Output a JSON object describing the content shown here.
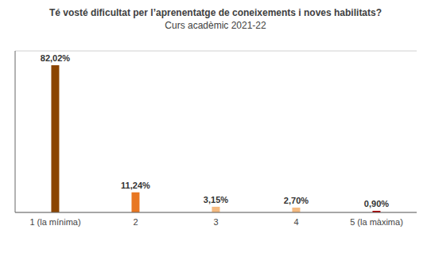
{
  "chart_data": {
    "type": "bar",
    "title": "Té vosté dificultat per l’aprenentatge de coneixements i noves habilitats?",
    "subtitle": "Curs acadèmic 2021-22",
    "categories": [
      "1 (la mínima)",
      "2",
      "3",
      "4",
      "5 (la màxima)"
    ],
    "values": [
      82.02,
      11.24,
      3.15,
      2.7,
      0.9
    ],
    "value_labels": [
      "82,02%",
      "11,24%",
      "3,15%",
      "2,70%",
      "0,90%"
    ],
    "colors": [
      "#8B4500",
      "#E87722",
      "#F5BA80",
      "#F5BA80",
      "#AA0000"
    ],
    "ylim": [
      0,
      90
    ],
    "yticks": [
      0,
      20,
      40,
      60,
      80
    ],
    "grid": true,
    "data_labels": true,
    "tick_labels": "x"
  }
}
